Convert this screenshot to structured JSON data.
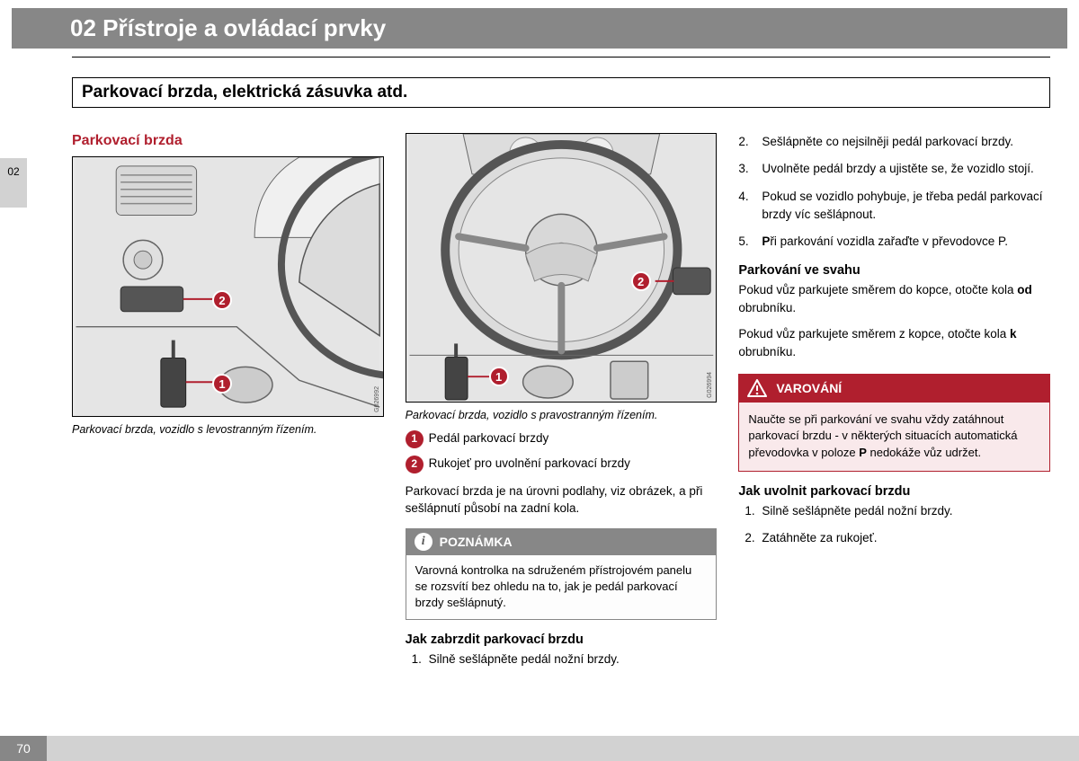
{
  "header": {
    "chapter_title": "02 Přístroje a ovládací prvky"
  },
  "section": {
    "title": "Parkovací brzda, elektrická zásuvka atd."
  },
  "side_tab": "02",
  "col1": {
    "heading": "Parkovací brzda",
    "fig": {
      "caption": "Parkovací brzda, vozidlo s levostranným řízením.",
      "id": "G026992",
      "c1": "1",
      "c2": "2"
    }
  },
  "col2": {
    "fig": {
      "caption": "Parkovací brzda, vozidlo s pravostranným řízením.",
      "id": "G026994",
      "c1": "1",
      "c2": "2"
    },
    "legend": [
      {
        "n": "1",
        "text": "Pedál parkovací brzdy"
      },
      {
        "n": "2",
        "text": "Rukojeť pro uvolnění parkovací brzdy"
      }
    ],
    "para1": "Parkovací brzda je na úrovni podlahy, viz obrázek, a při sešlápnutí působí na zadní kola.",
    "note": {
      "label": "POZNÁMKA",
      "body": "Varovná kontrolka na sdruženém přístrojovém panelu se rozsvítí bez ohledu na to, jak je pedál parkovací brzdy sešlápnutý."
    },
    "sub1": "Jak zabrzdit parkovací brzdu",
    "step1": "Silně sešlápněte pedál nožní brzdy."
  },
  "col3": {
    "steps": [
      "Sešlápněte co nejsilněji pedál parkovací brzdy.",
      "Uvolněte pedál brzdy a ujistěte se, že vozidlo stojí.",
      "Pokud se vozidlo pohybuje, je třeba pedál parkovací brzdy víc sešlápnout.",
      "Při parkování vozidla zařaďte v převodovce P."
    ],
    "sub_slope": "Parkování ve svahu",
    "slope_up_pre": "Pokud vůz parkujete směrem do kopce, otočte kola ",
    "slope_up_b": "od",
    "slope_up_post": " obrubníku.",
    "slope_down_pre": "Pokud vůz parkujete směrem z kopce, otočte kola ",
    "slope_down_b": "k",
    "slope_down_post": " obrubníku.",
    "warning": {
      "label": "VAROVÁNÍ",
      "body_pre": "Naučte se při parkování ve svahu vždy zatáhnout parkovací brzdu - v některých situacích automatická převodovka v poloze ",
      "body_b": "P",
      "body_post": " nedokáže vůz udržet."
    },
    "sub_release": "Jak uvolnit parkovací brzdu",
    "release_steps": [
      "Silně sešlápněte pedál nožní brzdy.",
      "Zatáhněte za rukojeť."
    ]
  },
  "page_number": "70"
}
